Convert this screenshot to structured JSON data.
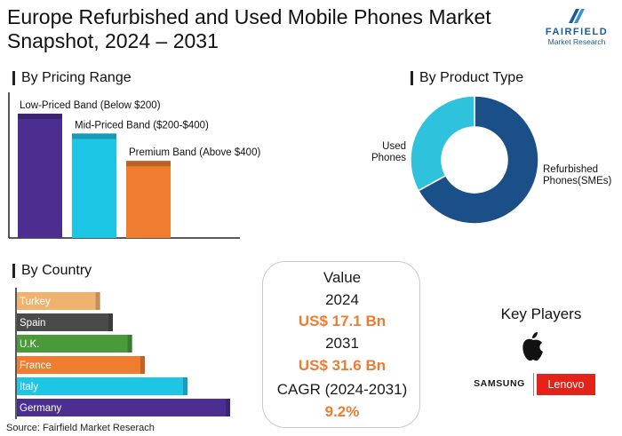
{
  "header": {
    "title": "Europe Refurbished and Used Mobile Phones Market Snapshot, 2024 – 2031",
    "logo_brand": "FAIRFIELD",
    "logo_sub": "Market Research"
  },
  "pricing": {
    "heading": "By Pricing Range"
  },
  "product": {
    "heading": "By Product Type"
  },
  "country": {
    "heading": "By Country"
  },
  "value_box": {
    "title": "Value",
    "year1": "2024",
    "value1": "US$ 17.1 Bn",
    "year2": "2031",
    "value2": "US$ 31.6 Bn",
    "cagr_label": "CAGR (2024-2031)",
    "cagr_value": "9.2%"
  },
  "key_players": {
    "title": "Key Players",
    "players": [
      "Apple",
      "SAMSUNG",
      "Lenovo"
    ]
  },
  "source": "Source: Fairfield Market Reserach",
  "colors": {
    "purple": "#4b2e8f",
    "cyan": "#1ec6e6",
    "orange": "#f07d2f",
    "navy": "#1a4f87",
    "tan": "#efb36f",
    "gray": "#4a4a4a",
    "green": "#4a9a3a",
    "lenovo_red": "#e2231a"
  },
  "chart_data": [
    {
      "type": "bar",
      "categories": [
        "Low-Priced Band (Below $200)",
        "Mid-Priced Band ($200-$400)",
        "Premium Band (Above $400)"
      ],
      "values": [
        100,
        84,
        62
      ],
      "colors": [
        "#4b2e8f",
        "#1ec6e6",
        "#f07d2f"
      ]
    },
    {
      "type": "pie",
      "labels": [
        "Refurbished Phones(SMEs)",
        "Used Phones"
      ],
      "values": [
        67,
        33
      ],
      "colors": [
        "#1a4f87",
        "#2fc2dc"
      ]
    },
    {
      "type": "bar",
      "orientation": "horizontal",
      "categories": [
        "Turkey",
        "Spain",
        "U.K.",
        "France",
        "Italy",
        "Germany"
      ],
      "values": [
        39,
        45,
        54,
        60,
        80,
        100
      ],
      "colors": [
        "#efb36f",
        "#4a4a4a",
        "#4a9a3a",
        "#f07d2f",
        "#1ec6e6",
        "#4b2e8f"
      ]
    }
  ]
}
